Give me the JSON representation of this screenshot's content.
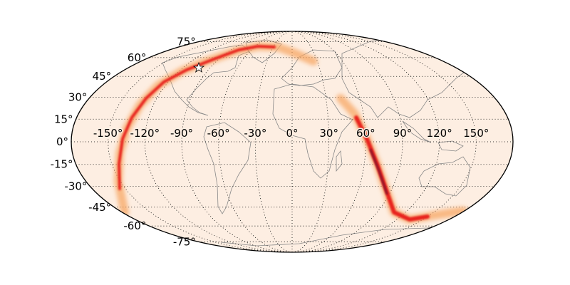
{
  "map": {
    "projection": "mollweide",
    "background_color": "#fdeee2",
    "band_colors": [
      "#f7a35c",
      "#e8201c",
      "#7a0a2a"
    ],
    "latitude_labels": [
      "75°",
      "60°",
      "45°",
      "30°",
      "15°",
      "0°",
      "-15°",
      "-30°",
      "-45°",
      "-60°",
      "-75°"
    ],
    "latitudes": [
      75,
      60,
      45,
      30,
      15,
      0,
      -15,
      -30,
      -45,
      -60,
      -75
    ],
    "longitude_labels": [
      "-150°",
      "-120°",
      "-90°",
      "-60°",
      "-30°",
      "0°",
      "30°",
      "60°",
      "90°",
      "120°",
      "150°"
    ],
    "longitudes": [
      -150,
      -120,
      -90,
      -60,
      -30,
      0,
      30,
      60,
      90,
      120,
      150
    ],
    "marker": {
      "icon": "star-icon",
      "color": "#ffffff"
    }
  }
}
